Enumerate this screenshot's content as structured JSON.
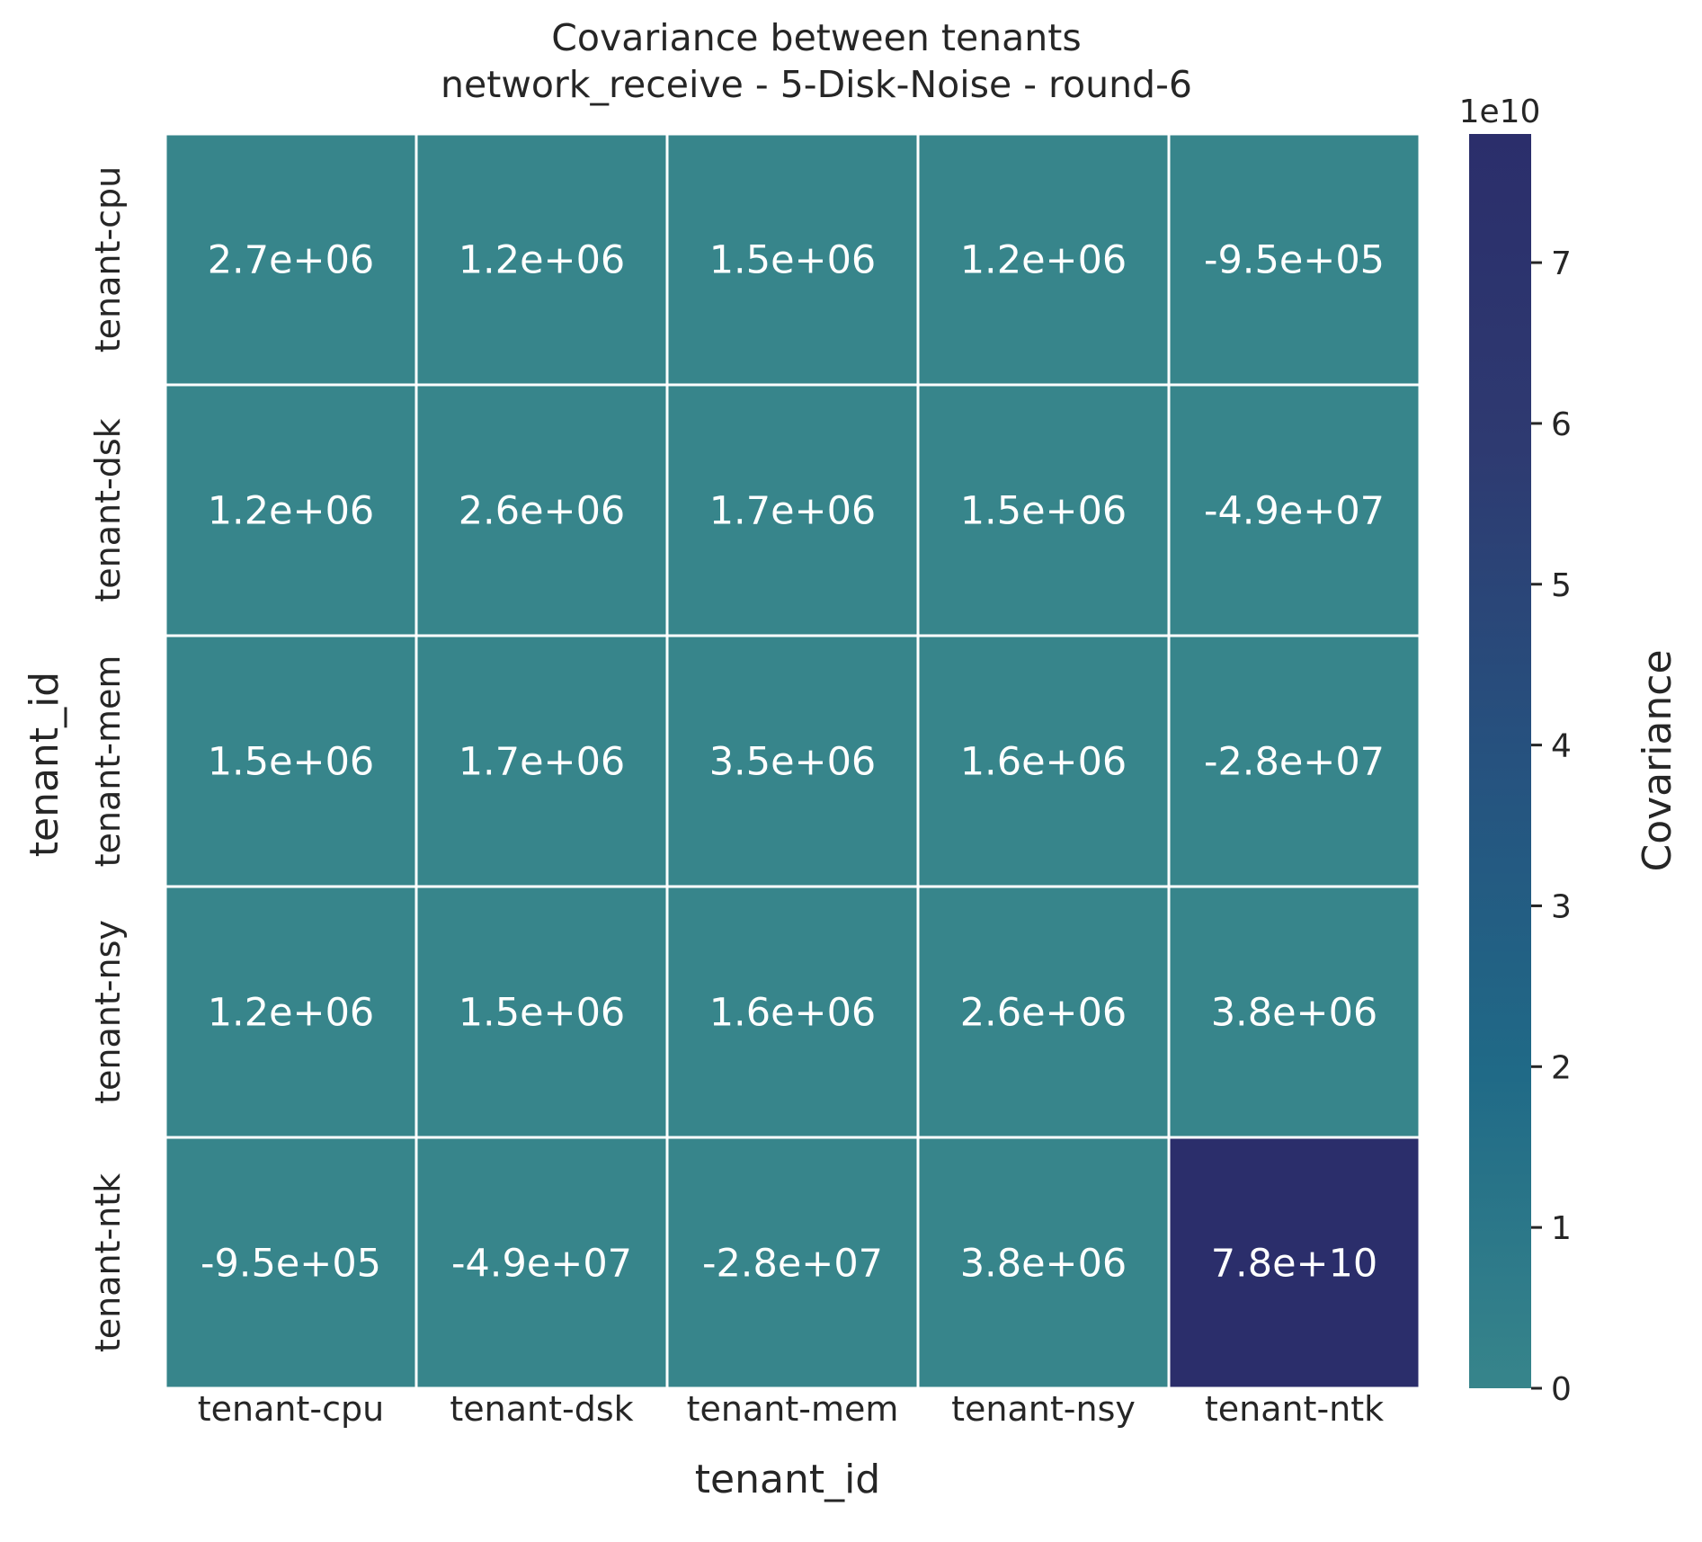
{
  "chart_data": {
    "type": "heatmap",
    "title": "Covariance between tenants",
    "subtitle": "network_receive - 5-Disk-Noise - round-6",
    "xlabel": "tenant_id",
    "ylabel": "tenant_id",
    "x_categories": [
      "tenant-cpu",
      "tenant-dsk",
      "tenant-mem",
      "tenant-nsy",
      "tenant-ntk"
    ],
    "y_categories": [
      "tenant-cpu",
      "tenant-dsk",
      "tenant-mem",
      "tenant-nsy",
      "tenant-ntk"
    ],
    "values": [
      [
        2700000,
        1200000,
        1500000,
        1200000,
        -950000
      ],
      [
        1200000,
        2600000,
        1700000,
        1500000,
        -49000000
      ],
      [
        1500000,
        1700000,
        3500000,
        1600000,
        -28000000
      ],
      [
        1200000,
        1500000,
        1600000,
        2600000,
        3800000
      ],
      [
        -950000,
        -49000000,
        -28000000,
        3800000,
        78000000000
      ]
    ],
    "labels": [
      [
        "2.7e+06",
        "1.2e+06",
        "1.5e+06",
        "1.2e+06",
        "-9.5e+05"
      ],
      [
        "1.2e+06",
        "2.6e+06",
        "1.7e+06",
        "1.5e+06",
        "-4.9e+07"
      ],
      [
        "1.5e+06",
        "1.7e+06",
        "3.5e+06",
        "1.6e+06",
        "-2.8e+07"
      ],
      [
        "1.2e+06",
        "1.5e+06",
        "1.6e+06",
        "2.6e+06",
        "3.8e+06"
      ],
      [
        "-9.5e+05",
        "-4.9e+07",
        "-2.8e+07",
        "3.8e+06",
        "7.8e+10"
      ]
    ],
    "colorbar": {
      "label": "Covariance",
      "offset_text": "1e10",
      "range": [
        0,
        78000000000
      ],
      "ticks": [
        0,
        1,
        2,
        3,
        4,
        5,
        6,
        7
      ],
      "tick_scale": 10000000000
    },
    "colormap": [
      "#37858b",
      "#206a87",
      "#26527f",
      "#2e3a71",
      "#2b2e6b"
    ],
    "grid": false
  }
}
